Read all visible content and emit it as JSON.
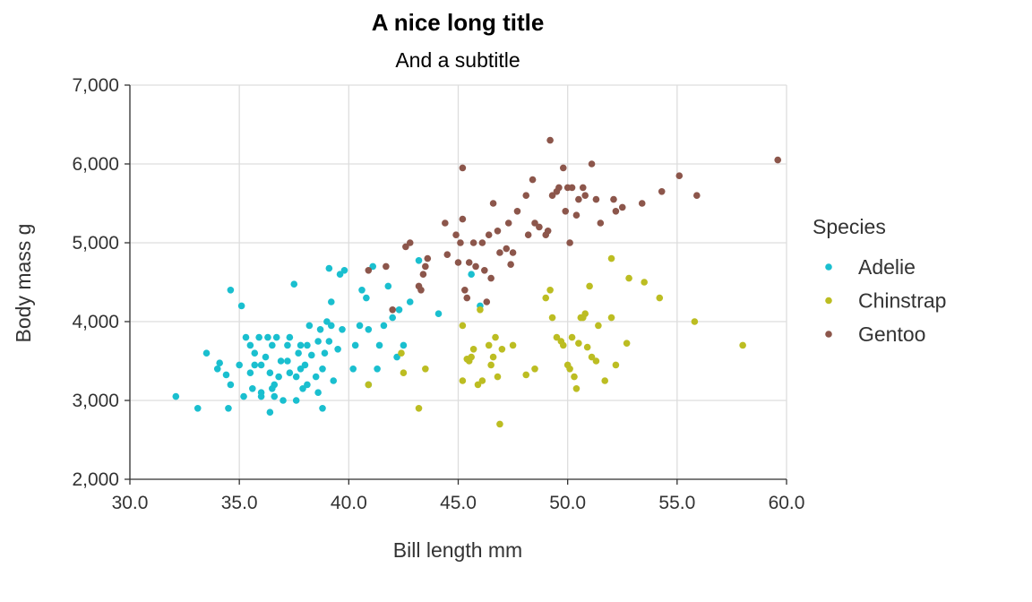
{
  "chart_data": {
    "type": "scatter",
    "title": "A nice long title",
    "subtitle": "And a subtitle",
    "xlabel": "Bill length mm",
    "ylabel": "Body mass g",
    "xlim": [
      30,
      60
    ],
    "ylim": [
      2000,
      7000
    ],
    "x_ticks": [
      30,
      35,
      40,
      45,
      50,
      55,
      60
    ],
    "x_tick_labels": [
      "30.0",
      "35.0",
      "40.0",
      "45.0",
      "50.0",
      "55.0",
      "60.0"
    ],
    "y_ticks": [
      2000,
      3000,
      4000,
      5000,
      6000,
      7000
    ],
    "y_tick_labels": [
      "2,000",
      "3,000",
      "4,000",
      "5,000",
      "6,000",
      "7,000"
    ],
    "grid": true,
    "legend": {
      "title": "Species",
      "placement": "right"
    },
    "series": [
      {
        "name": "Adelie",
        "color": "#1abfcf",
        "points": [
          [
            32.1,
            3050
          ],
          [
            33.1,
            2900
          ],
          [
            33.5,
            3600
          ],
          [
            34.0,
            3400
          ],
          [
            34.1,
            3475
          ],
          [
            34.4,
            3325
          ],
          [
            34.5,
            2900
          ],
          [
            34.6,
            4400
          ],
          [
            34.6,
            3200
          ],
          [
            35.0,
            3450
          ],
          [
            35.1,
            4200
          ],
          [
            35.2,
            3050
          ],
          [
            35.3,
            3800
          ],
          [
            35.5,
            3700
          ],
          [
            35.5,
            3350
          ],
          [
            35.6,
            3150
          ],
          [
            35.7,
            3600
          ],
          [
            35.7,
            3450
          ],
          [
            35.9,
            3800
          ],
          [
            36.0,
            3450
          ],
          [
            36.0,
            3050
          ],
          [
            36.0,
            3100
          ],
          [
            36.2,
            3550
          ],
          [
            36.3,
            3800
          ],
          [
            36.4,
            2850
          ],
          [
            36.4,
            3350
          ],
          [
            36.5,
            3700
          ],
          [
            36.5,
            3150
          ],
          [
            36.6,
            3200
          ],
          [
            36.6,
            3050
          ],
          [
            36.7,
            3800
          ],
          [
            36.8,
            3300
          ],
          [
            36.9,
            3500
          ],
          [
            37.0,
            3000
          ],
          [
            37.2,
            3500
          ],
          [
            37.2,
            3700
          ],
          [
            37.3,
            3800
          ],
          [
            37.3,
            3350
          ],
          [
            37.5,
            4475
          ],
          [
            37.6,
            3300
          ],
          [
            37.7,
            3600
          ],
          [
            37.8,
            3700
          ],
          [
            37.8,
            3400
          ],
          [
            37.9,
            3150
          ],
          [
            38.0,
            3450
          ],
          [
            38.1,
            3700
          ],
          [
            38.1,
            3200
          ],
          [
            38.2,
            3950
          ],
          [
            38.3,
            3575
          ],
          [
            38.5,
            3300
          ],
          [
            38.6,
            3750
          ],
          [
            38.6,
            3100
          ],
          [
            38.7,
            3900
          ],
          [
            38.8,
            3400
          ],
          [
            38.9,
            3600
          ],
          [
            39.0,
            4000
          ],
          [
            39.1,
            3750
          ],
          [
            39.1,
            4675
          ],
          [
            39.2,
            3950
          ],
          [
            39.3,
            3250
          ],
          [
            39.5,
            3650
          ],
          [
            39.6,
            4600
          ],
          [
            39.7,
            3900
          ],
          [
            39.8,
            4650
          ],
          [
            40.2,
            3400
          ],
          [
            40.3,
            3700
          ],
          [
            40.5,
            3950
          ],
          [
            40.6,
            4400
          ],
          [
            40.8,
            4300
          ],
          [
            40.9,
            3900
          ],
          [
            41.1,
            4700
          ],
          [
            41.3,
            3400
          ],
          [
            41.4,
            3700
          ],
          [
            41.6,
            3950
          ],
          [
            41.8,
            4450
          ],
          [
            42.0,
            4050
          ],
          [
            42.2,
            3550
          ],
          [
            42.3,
            4150
          ],
          [
            42.5,
            3700
          ],
          [
            42.8,
            4250
          ],
          [
            43.2,
            4775
          ],
          [
            44.1,
            4100
          ],
          [
            45.6,
            4600
          ],
          [
            46.0,
            4200
          ],
          [
            37.6,
            3000
          ],
          [
            38.8,
            2900
          ],
          [
            39.2,
            4250
          ],
          [
            40.9,
            3200
          ]
        ]
      },
      {
        "name": "Chinstrap",
        "color": "#bcbd22",
        "points": [
          [
            40.9,
            3200
          ],
          [
            42.4,
            3600
          ],
          [
            42.5,
            3350
          ],
          [
            43.2,
            2900
          ],
          [
            43.5,
            3400
          ],
          [
            45.2,
            3950
          ],
          [
            45.2,
            3250
          ],
          [
            45.4,
            3525
          ],
          [
            45.5,
            3500
          ],
          [
            45.6,
            3550
          ],
          [
            45.7,
            3650
          ],
          [
            45.9,
            3200
          ],
          [
            46.0,
            4150
          ],
          [
            46.1,
            3250
          ],
          [
            46.4,
            3700
          ],
          [
            46.5,
            3450
          ],
          [
            46.6,
            3550
          ],
          [
            46.7,
            3800
          ],
          [
            46.8,
            3300
          ],
          [
            46.9,
            2700
          ],
          [
            47.0,
            3650
          ],
          [
            47.5,
            3700
          ],
          [
            48.1,
            3325
          ],
          [
            48.5,
            3400
          ],
          [
            49.0,
            4300
          ],
          [
            49.2,
            4400
          ],
          [
            49.3,
            4050
          ],
          [
            49.5,
            3800
          ],
          [
            49.7,
            3750
          ],
          [
            50.0,
            3450
          ],
          [
            50.1,
            3400
          ],
          [
            50.2,
            3800
          ],
          [
            50.3,
            3300
          ],
          [
            50.5,
            3725
          ],
          [
            50.6,
            4050
          ],
          [
            50.7,
            4050
          ],
          [
            50.8,
            4100
          ],
          [
            50.9,
            3675
          ],
          [
            51.0,
            4450
          ],
          [
            51.3,
            3500
          ],
          [
            51.4,
            3950
          ],
          [
            51.7,
            3250
          ],
          [
            52.0,
            4800
          ],
          [
            52.0,
            4050
          ],
          [
            52.2,
            3450
          ],
          [
            52.7,
            3725
          ],
          [
            52.8,
            4550
          ],
          [
            53.5,
            4500
          ],
          [
            54.2,
            4300
          ],
          [
            55.8,
            4000
          ],
          [
            58.0,
            3700
          ],
          [
            51.1,
            3550
          ],
          [
            49.8,
            3700
          ],
          [
            50.4,
            3150
          ]
        ]
      },
      {
        "name": "Gentoo",
        "color": "#8c564b",
        "points": [
          [
            40.9,
            4650
          ],
          [
            41.7,
            4700
          ],
          [
            42.0,
            4150
          ],
          [
            42.6,
            4950
          ],
          [
            42.8,
            5000
          ],
          [
            43.2,
            4450
          ],
          [
            43.3,
            4400
          ],
          [
            43.4,
            4600
          ],
          [
            43.5,
            4700
          ],
          [
            43.6,
            4800
          ],
          [
            44.4,
            5250
          ],
          [
            44.5,
            4850
          ],
          [
            44.9,
            5100
          ],
          [
            45.0,
            4750
          ],
          [
            45.1,
            5000
          ],
          [
            45.2,
            5300
          ],
          [
            45.2,
            5950
          ],
          [
            45.3,
            4400
          ],
          [
            45.5,
            4750
          ],
          [
            45.7,
            5000
          ],
          [
            45.8,
            4700
          ],
          [
            46.1,
            5000
          ],
          [
            46.2,
            4650
          ],
          [
            46.4,
            5100
          ],
          [
            46.5,
            4550
          ],
          [
            46.6,
            5500
          ],
          [
            46.8,
            5150
          ],
          [
            47.2,
            4925
          ],
          [
            47.3,
            5250
          ],
          [
            47.5,
            4875
          ],
          [
            47.7,
            5400
          ],
          [
            48.1,
            5600
          ],
          [
            48.2,
            5100
          ],
          [
            48.4,
            5800
          ],
          [
            48.5,
            5250
          ],
          [
            48.7,
            5200
          ],
          [
            49.0,
            5100
          ],
          [
            49.1,
            5150
          ],
          [
            49.2,
            6300
          ],
          [
            49.3,
            5600
          ],
          [
            49.5,
            5650
          ],
          [
            49.6,
            5700
          ],
          [
            49.8,
            5950
          ],
          [
            49.9,
            5400
          ],
          [
            50.0,
            5700
          ],
          [
            50.1,
            5000
          ],
          [
            50.2,
            5700
          ],
          [
            50.4,
            5350
          ],
          [
            50.5,
            5550
          ],
          [
            50.7,
            5700
          ],
          [
            50.8,
            5600
          ],
          [
            51.1,
            6000
          ],
          [
            51.3,
            5550
          ],
          [
            51.5,
            5250
          ],
          [
            52.1,
            5550
          ],
          [
            52.2,
            5400
          ],
          [
            52.5,
            5450
          ],
          [
            53.4,
            5500
          ],
          [
            54.3,
            5650
          ],
          [
            55.1,
            5850
          ],
          [
            55.9,
            5600
          ],
          [
            59.6,
            6050
          ],
          [
            47.4,
            4725
          ],
          [
            46.9,
            4875
          ],
          [
            45.4,
            4300
          ],
          [
            46.3,
            4250
          ]
        ]
      }
    ]
  }
}
